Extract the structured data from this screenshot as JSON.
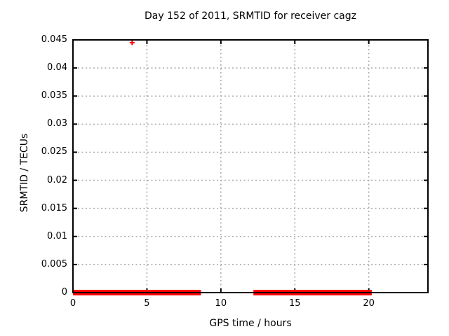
{
  "chart_data": {
    "type": "scatter",
    "title": "Day 152 of 2011, SRMTID for receiver cagz",
    "xlabel": "GPS time / hours",
    "ylabel": "SRMTID / TECUs",
    "xlim": [
      0,
      24
    ],
    "ylim": [
      0,
      0.045
    ],
    "xticks": [
      0,
      5,
      10,
      15,
      20
    ],
    "xtick_labels": [
      "0",
      "5",
      "10",
      "15",
      "20"
    ],
    "yticks": [
      0,
      0.005,
      0.01,
      0.015,
      0.02,
      0.025,
      0.03,
      0.035,
      0.04,
      0.045
    ],
    "ytick_labels": [
      "0",
      "0.005",
      "0.01",
      "0.015",
      "0.02",
      "0.025",
      "0.03",
      "0.035",
      "0.04",
      "0.045"
    ],
    "grid": true,
    "legend": "none",
    "marker": "plus",
    "colors": {
      "series": "#ff0000",
      "grid": "#a8a8a8",
      "border": "#000000",
      "text": "#000000",
      "background": "#ffffff"
    },
    "series": [
      {
        "name": "SRMTID dense band at zero",
        "kind": "band",
        "y": 0,
        "x_segments": [
          [
            0,
            8.65
          ],
          [
            12.2,
            20.2
          ]
        ]
      },
      {
        "name": "SRMTID outlier point",
        "kind": "point",
        "points": [
          {
            "x": 4.0,
            "y": 0.0445
          }
        ]
      }
    ]
  }
}
